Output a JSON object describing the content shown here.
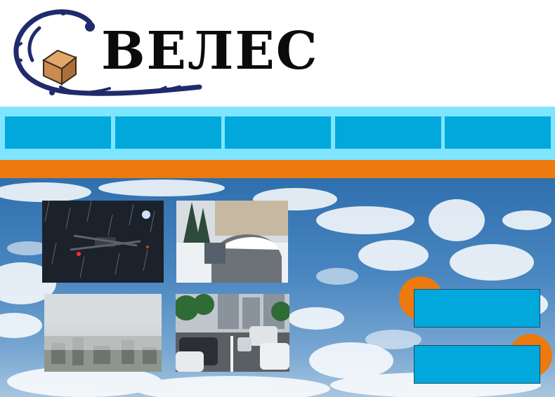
{
  "brand": {
    "logo_text": "ВЕЛЕС",
    "colors": {
      "navy": "#1f2b6b",
      "box": "#c98b4e",
      "orange": "#ec7a0e",
      "cyan": "#00a8dc",
      "light_cyan": "#7fe5ff"
    }
  },
  "nav": {
    "items": [
      {
        "label": ""
      },
      {
        "label": ""
      },
      {
        "label": ""
      },
      {
        "label": ""
      },
      {
        "label": ""
      }
    ]
  },
  "gallery": {
    "photos": [
      {
        "icon": "drone-in-rain-photo"
      },
      {
        "icon": "snow-covered-car-photo"
      },
      {
        "icon": "foggy-city-aerial-photo"
      },
      {
        "icon": "traffic-jam-photo"
      }
    ]
  },
  "actions": {
    "primary_label": "",
    "secondary_label": ""
  }
}
